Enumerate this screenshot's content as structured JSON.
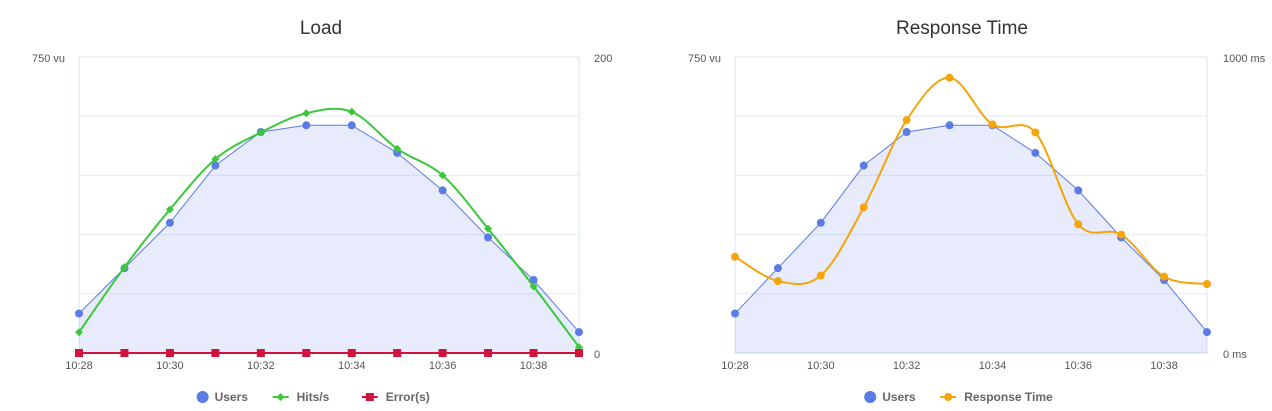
{
  "chart_data": [
    {
      "type": "line",
      "title": "Load",
      "x": [
        "10:28",
        "10:29",
        "10:30",
        "10:31",
        "10:32",
        "10:33",
        "10:34",
        "10:35",
        "10:36",
        "10:37",
        "10:38",
        "10:39"
      ],
      "x_ticks": [
        "10:28",
        "10:30",
        "10:32",
        "10:34",
        "10:36",
        "10:38"
      ],
      "y_left": {
        "top_label": "750 vu",
        "range": [
          0,
          750
        ]
      },
      "y_right": {
        "top_label": "200",
        "bottom_label": "0",
        "range": [
          0,
          200
        ]
      },
      "series": [
        {
          "name": "Users",
          "axis": "left",
          "color": "#5b7be6",
          "marker": "circle",
          "fill": true,
          "values": [
            100,
            215,
            330,
            475,
            560,
            577,
            577,
            507,
            412,
            293,
            185,
            53
          ]
        },
        {
          "name": "Hits/s",
          "axis": "right",
          "color": "#3cc83c",
          "marker": "diamond",
          "smooth": true,
          "values": [
            14,
            58,
            97,
            131,
            149,
            162,
            163,
            138,
            120,
            84,
            45,
            4
          ]
        },
        {
          "name": "Error(s)",
          "axis": "right",
          "color": "#d0143c",
          "marker": "square",
          "values": [
            0,
            0,
            0,
            0,
            0,
            0,
            0,
            0,
            0,
            0,
            0,
            0
          ]
        }
      ],
      "grid": true,
      "legend": "bottom"
    },
    {
      "type": "line",
      "title": "Response Time",
      "x": [
        "10:28",
        "10:29",
        "10:30",
        "10:31",
        "10:32",
        "10:33",
        "10:34",
        "10:35",
        "10:36",
        "10:37",
        "10:38",
        "10:39"
      ],
      "x_ticks": [
        "10:28",
        "10:30",
        "10:32",
        "10:34",
        "10:36",
        "10:38"
      ],
      "y_left": {
        "top_label": "750 vu",
        "range": [
          0,
          750
        ]
      },
      "y_right": {
        "top_label": "1000 ms",
        "bottom_label": "0 ms",
        "range": [
          0,
          1000
        ]
      },
      "series": [
        {
          "name": "Users",
          "axis": "left",
          "color": "#5b7be6",
          "marker": "circle",
          "fill": true,
          "values": [
            100,
            215,
            330,
            475,
            560,
            577,
            577,
            507,
            412,
            293,
            185,
            53
          ]
        },
        {
          "name": "Response Time",
          "axis": "right",
          "color": "#f5a50a",
          "marker": "circle",
          "smooth": true,
          "values": [
            325,
            243,
            262,
            492,
            787,
            930,
            772,
            745,
            435,
            400,
            258,
            233
          ]
        }
      ],
      "grid": true,
      "legend": "bottom"
    }
  ]
}
